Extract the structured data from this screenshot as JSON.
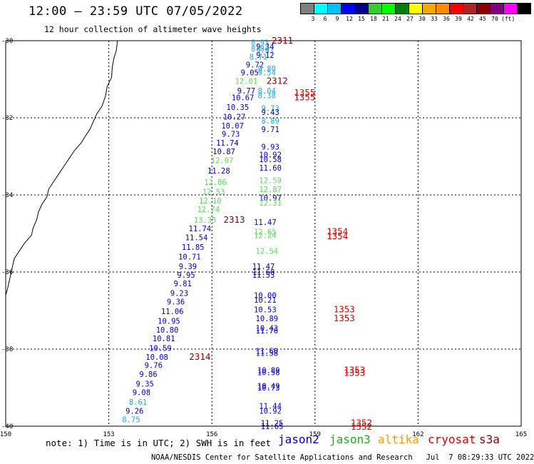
{
  "header": {
    "title": "12:00 — 23:59 UTC 07/05/2022",
    "subtitle": "12 hour collection of altimeter wave heights"
  },
  "scale": {
    "unit": "(ft)",
    "colors": [
      "#808080",
      "#00ffff",
      "#00bfff",
      "#0000ff",
      "#00008b",
      "#32cd32",
      "#00ff00",
      "#008000",
      "#ffff00",
      "#ffa500",
      "#ff8c00",
      "#ff0000",
      "#b22222",
      "#8b0000",
      "#800080",
      "#ff00ff",
      "#000000"
    ],
    "labels": [
      "3",
      "6",
      "9",
      "12",
      "15",
      "18",
      "21",
      "24",
      "27",
      "30",
      "33",
      "36",
      "39",
      "42",
      "45",
      "70"
    ]
  },
  "axes": {
    "y_labels": [
      "-30",
      "-32",
      "-34",
      "-36",
      "-38",
      "-40"
    ],
    "x_labels": [
      "150",
      "153",
      "156",
      "159",
      "162",
      "165"
    ]
  },
  "colors": {
    "jason2": "#0000cc",
    "jason3": "#22aa22",
    "altika": "#ff9900",
    "cryosat": "#dd0000",
    "s3a": "#880000",
    "light": "#55dd55",
    "cyan": "#22aadd"
  },
  "chart_data": {
    "type": "scatter",
    "xlim": [
      150,
      165
    ],
    "ylim": [
      -40,
      -30
    ],
    "grid": true,
    "points": [
      {
        "lon": 157.4,
        "lat": -30.05,
        "text": "8.93",
        "c": "cyan"
      },
      {
        "lon": 157.55,
        "lat": -30.15,
        "text": "9.34",
        "c": "jason2"
      },
      {
        "lon": 157.4,
        "lat": -30.2,
        "text": "8.84",
        "c": "cyan"
      },
      {
        "lon": 157.55,
        "lat": -30.25,
        "text": "9.41",
        "c": "cyan"
      },
      {
        "lon": 157.55,
        "lat": -30.37,
        "text": "9.12",
        "c": "jason2"
      },
      {
        "lon": 157.35,
        "lat": -30.42,
        "text": "8.71",
        "c": "cyan"
      },
      {
        "lon": 157.25,
        "lat": -30.62,
        "text": "9.72",
        "c": "jason2"
      },
      {
        "lon": 157.6,
        "lat": -30.72,
        "text": "9.80",
        "c": "cyan"
      },
      {
        "lon": 157.1,
        "lat": -30.82,
        "text": "9.05",
        "c": "jason2"
      },
      {
        "lon": 157.6,
        "lat": -30.82,
        "text": "9.54",
        "c": "cyan"
      },
      {
        "lon": 157.0,
        "lat": -31.05,
        "text": "12.01",
        "c": "light"
      },
      {
        "lon": 157.0,
        "lat": -31.3,
        "text": "9.77",
        "c": "jason2"
      },
      {
        "lon": 157.6,
        "lat": -31.3,
        "text": "8.04",
        "c": "cyan"
      },
      {
        "lon": 156.9,
        "lat": -31.47,
        "text": "10.67",
        "c": "jason2"
      },
      {
        "lon": 157.6,
        "lat": -31.42,
        "text": "8.38",
        "c": "cyan"
      },
      {
        "lon": 156.75,
        "lat": -31.72,
        "text": "10.35",
        "c": "jason2"
      },
      {
        "lon": 157.7,
        "lat": -31.75,
        "text": "9.73",
        "c": "cyan"
      },
      {
        "lon": 157.7,
        "lat": -31.85,
        "text": "9.43",
        "c": "jason2"
      },
      {
        "lon": 156.65,
        "lat": -31.97,
        "text": "10.27",
        "c": "jason2"
      },
      {
        "lon": 157.7,
        "lat": -32.07,
        "text": "8.89",
        "c": "cyan"
      },
      {
        "lon": 156.6,
        "lat": -32.2,
        "text": "10.07",
        "c": "jason2"
      },
      {
        "lon": 157.7,
        "lat": -32.3,
        "text": "9.71",
        "c": "jason2"
      },
      {
        "lon": 156.55,
        "lat": -32.42,
        "text": "9.73",
        "c": "jason2"
      },
      {
        "lon": 156.45,
        "lat": -32.65,
        "text": "11.74",
        "c": "jason2"
      },
      {
        "lon": 157.7,
        "lat": -32.75,
        "text": "9.93",
        "c": "jason2"
      },
      {
        "lon": 156.35,
        "lat": -32.87,
        "text": "10.87",
        "c": "jason2"
      },
      {
        "lon": 157.7,
        "lat": -32.95,
        "text": "10.92",
        "c": "jason2"
      },
      {
        "lon": 157.7,
        "lat": -33.07,
        "text": "10.58",
        "c": "jason2"
      },
      {
        "lon": 156.3,
        "lat": -33.1,
        "text": "12.07",
        "c": "light"
      },
      {
        "lon": 157.7,
        "lat": -33.3,
        "text": "11.60",
        "c": "jason2"
      },
      {
        "lon": 156.2,
        "lat": -33.37,
        "text": "11.28",
        "c": "jason2"
      },
      {
        "lon": 157.7,
        "lat": -33.62,
        "text": "12.59",
        "c": "light"
      },
      {
        "lon": 156.1,
        "lat": -33.67,
        "text": "12.86",
        "c": "light"
      },
      {
        "lon": 157.7,
        "lat": -33.85,
        "text": "12.87",
        "c": "light"
      },
      {
        "lon": 156.05,
        "lat": -33.92,
        "text": "12.53",
        "c": "light"
      },
      {
        "lon": 157.7,
        "lat": -34.07,
        "text": "10.97",
        "c": "jason2"
      },
      {
        "lon": 155.95,
        "lat": -34.15,
        "text": "12.10",
        "c": "light"
      },
      {
        "lon": 157.7,
        "lat": -34.2,
        "text": "12.31",
        "c": "light"
      },
      {
        "lon": 155.9,
        "lat": -34.37,
        "text": "12.74",
        "c": "light"
      },
      {
        "lon": 155.8,
        "lat": -34.65,
        "text": "13.35",
        "c": "light"
      },
      {
        "lon": 157.55,
        "lat": -34.7,
        "text": "11.47",
        "c": "jason2"
      },
      {
        "lon": 155.65,
        "lat": -34.87,
        "text": "11.74",
        "c": "jason2"
      },
      {
        "lon": 157.55,
        "lat": -34.95,
        "text": "12.65",
        "c": "light"
      },
      {
        "lon": 157.55,
        "lat": -35.05,
        "text": "12.24",
        "c": "light"
      },
      {
        "lon": 155.55,
        "lat": -35.1,
        "text": "11.54",
        "c": "jason2"
      },
      {
        "lon": 155.45,
        "lat": -35.35,
        "text": "11.85",
        "c": "jason2"
      },
      {
        "lon": 157.6,
        "lat": -35.45,
        "text": "12.54",
        "c": "light"
      },
      {
        "lon": 155.35,
        "lat": -35.6,
        "text": "10.71",
        "c": "jason2"
      },
      {
        "lon": 155.3,
        "lat": -35.85,
        "text": "9.39",
        "c": "jason2"
      },
      {
        "lon": 157.5,
        "lat": -35.85,
        "text": "11.47",
        "c": "jason2"
      },
      {
        "lon": 157.5,
        "lat": -36.0,
        "text": "11.68",
        "c": "jason2"
      },
      {
        "lon": 155.25,
        "lat": -36.07,
        "text": "9.95",
        "c": "jason2"
      },
      {
        "lon": 157.5,
        "lat": -36.07,
        "text": "11.53",
        "c": "jason2"
      },
      {
        "lon": 155.15,
        "lat": -36.3,
        "text": "9.81",
        "c": "jason2"
      },
      {
        "lon": 155.05,
        "lat": -36.55,
        "text": "9.23",
        "c": "jason2"
      },
      {
        "lon": 157.55,
        "lat": -36.6,
        "text": "10.00",
        "c": "jason2"
      },
      {
        "lon": 157.55,
        "lat": -36.72,
        "text": "10.21",
        "c": "jason2"
      },
      {
        "lon": 154.95,
        "lat": -36.77,
        "text": "9.36",
        "c": "jason2"
      },
      {
        "lon": 157.55,
        "lat": -36.97,
        "text": "10.53",
        "c": "jason2"
      },
      {
        "lon": 154.85,
        "lat": -37.02,
        "text": "11.06",
        "c": "jason2"
      },
      {
        "lon": 157.6,
        "lat": -37.2,
        "text": "10.89",
        "c": "jason2"
      },
      {
        "lon": 154.75,
        "lat": -37.27,
        "text": "10.95",
        "c": "jason2"
      },
      {
        "lon": 157.6,
        "lat": -37.45,
        "text": "10.43",
        "c": "jason2"
      },
      {
        "lon": 154.7,
        "lat": -37.5,
        "text": "10.80",
        "c": "jason2"
      },
      {
        "lon": 157.6,
        "lat": -37.52,
        "text": "11.76",
        "c": "jason2"
      },
      {
        "lon": 154.6,
        "lat": -37.72,
        "text": "10.81",
        "c": "jason2"
      },
      {
        "lon": 154.5,
        "lat": -37.97,
        "text": "10.59",
        "c": "jason2"
      },
      {
        "lon": 157.6,
        "lat": -38.05,
        "text": "11.60",
        "c": "jason2"
      },
      {
        "lon": 157.6,
        "lat": -38.1,
        "text": "11.58",
        "c": "jason2"
      },
      {
        "lon": 154.4,
        "lat": -38.2,
        "text": "10.08",
        "c": "jason2"
      },
      {
        "lon": 154.3,
        "lat": -38.42,
        "text": "9.76",
        "c": "jason2"
      },
      {
        "lon": 157.65,
        "lat": -38.55,
        "text": "10.89",
        "c": "jason2"
      },
      {
        "lon": 157.65,
        "lat": -38.6,
        "text": "10.58",
        "c": "jason2"
      },
      {
        "lon": 154.15,
        "lat": -38.65,
        "text": "9.86",
        "c": "jason2"
      },
      {
        "lon": 154.05,
        "lat": -38.9,
        "text": "9.35",
        "c": "jason2"
      },
      {
        "lon": 157.65,
        "lat": -38.95,
        "text": "10.49",
        "c": "jason2"
      },
      {
        "lon": 157.65,
        "lat": -39.0,
        "text": "10.73",
        "c": "jason2"
      },
      {
        "lon": 153.95,
        "lat": -39.12,
        "text": "9.08",
        "c": "jason2"
      },
      {
        "lon": 153.85,
        "lat": -39.37,
        "text": "8.61",
        "c": "cyan"
      },
      {
        "lon": 157.7,
        "lat": -39.47,
        "text": "11.44",
        "c": "jason2"
      },
      {
        "lon": 153.75,
        "lat": -39.6,
        "text": "9.26",
        "c": "jason2"
      },
      {
        "lon": 157.7,
        "lat": -39.6,
        "text": "10.92",
        "c": "jason2"
      },
      {
        "lon": 153.65,
        "lat": -39.82,
        "text": "8.75",
        "c": "cyan"
      },
      {
        "lon": 157.75,
        "lat": -39.92,
        "text": "11.25",
        "c": "jason2"
      },
      {
        "lon": 157.75,
        "lat": -40.0,
        "text": "11.65",
        "c": "jason2"
      }
    ],
    "time_labels": [
      {
        "lon": 158.05,
        "lat": -30.0,
        "text": "2311",
        "c": "s3a"
      },
      {
        "lon": 157.9,
        "lat": -31.05,
        "text": "2312",
        "c": "s3a"
      },
      {
        "lon": 158.7,
        "lat": -31.35,
        "text": "1355",
        "c": "cryosat"
      },
      {
        "lon": 158.7,
        "lat": -31.47,
        "text": "1355",
        "c": "cryosat"
      },
      {
        "lon": 156.65,
        "lat": -34.65,
        "text": "2313",
        "c": "s3a"
      },
      {
        "lon": 159.65,
        "lat": -34.95,
        "text": "1354",
        "c": "cryosat"
      },
      {
        "lon": 159.65,
        "lat": -35.07,
        "text": "1354",
        "c": "cryosat"
      },
      {
        "lon": 159.85,
        "lat": -36.97,
        "text": "1353",
        "c": "cryosat"
      },
      {
        "lon": 159.85,
        "lat": -37.2,
        "text": "1353",
        "c": "cryosat"
      },
      {
        "lon": 155.65,
        "lat": -38.2,
        "text": "2314",
        "c": "s3a"
      },
      {
        "lon": 160.15,
        "lat": -38.55,
        "text": "1353",
        "c": "cryosat"
      },
      {
        "lon": 160.15,
        "lat": -38.62,
        "text": "1353",
        "c": "cryosat"
      },
      {
        "lon": 160.35,
        "lat": -39.92,
        "text": "1352",
        "c": "cryosat"
      },
      {
        "lon": 160.35,
        "lat": -40.02,
        "text": "1352",
        "c": "cryosat"
      }
    ]
  },
  "coastline": [
    [
      153.25,
      -30.0
    ],
    [
      153.22,
      -30.25
    ],
    [
      153.15,
      -30.45
    ],
    [
      153.1,
      -30.7
    ],
    [
      153.08,
      -30.95
    ],
    [
      152.95,
      -31.2
    ],
    [
      152.9,
      -31.45
    ],
    [
      152.8,
      -31.7
    ],
    [
      152.65,
      -31.9
    ],
    [
      152.55,
      -32.1
    ],
    [
      152.45,
      -32.3
    ],
    [
      152.3,
      -32.5
    ],
    [
      152.2,
      -32.65
    ],
    [
      152.0,
      -32.85
    ],
    [
      151.85,
      -33.05
    ],
    [
      151.7,
      -33.25
    ],
    [
      151.55,
      -33.45
    ],
    [
      151.4,
      -33.65
    ],
    [
      151.25,
      -33.85
    ],
    [
      151.2,
      -34.05
    ],
    [
      151.05,
      -34.25
    ],
    [
      150.95,
      -34.45
    ],
    [
      150.9,
      -34.65
    ],
    [
      150.8,
      -34.85
    ],
    [
      150.75,
      -35.05
    ],
    [
      150.55,
      -35.25
    ],
    [
      150.4,
      -35.45
    ],
    [
      150.25,
      -35.65
    ],
    [
      150.2,
      -35.85
    ],
    [
      150.15,
      -36.05
    ],
    [
      150.1,
      -36.25
    ],
    [
      150.05,
      -36.45
    ],
    [
      150.0,
      -36.6
    ]
  ],
  "footer": {
    "note": "note: 1) Time is in UTC; 2) SWH is in feet",
    "sats": [
      "jason2",
      "jason3",
      "altika",
      "cryosat",
      "s3a"
    ],
    "credit": "NOAA/NESDIS Center for Satellite Applications and Research   Jul  7 08:29:33 UTC 2022"
  }
}
